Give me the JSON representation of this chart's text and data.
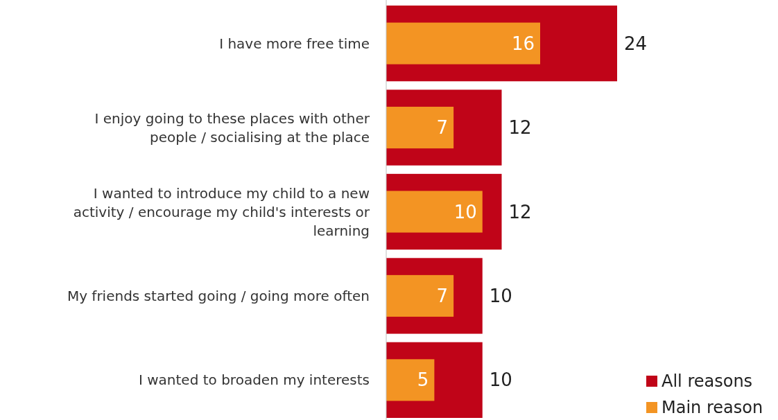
{
  "chart_data": {
    "type": "bar",
    "orientation": "horizontal",
    "categories": [
      "I have more free time",
      "I enjoy going to these places with other people / socialising at the place",
      "I wanted to introduce my child to a new activity / encourage my child's interests or learning",
      "My friends started going / going more often",
      "I wanted to broaden my interests"
    ],
    "series": [
      {
        "name": "All reasons",
        "color": "#c00418",
        "values": [
          24,
          12,
          12,
          10,
          10
        ]
      },
      {
        "name": "Main reason",
        "color": "#f39423",
        "values": [
          16,
          7,
          10,
          7,
          5
        ]
      }
    ],
    "data_labels": true,
    "legend": "bottom right"
  }
}
